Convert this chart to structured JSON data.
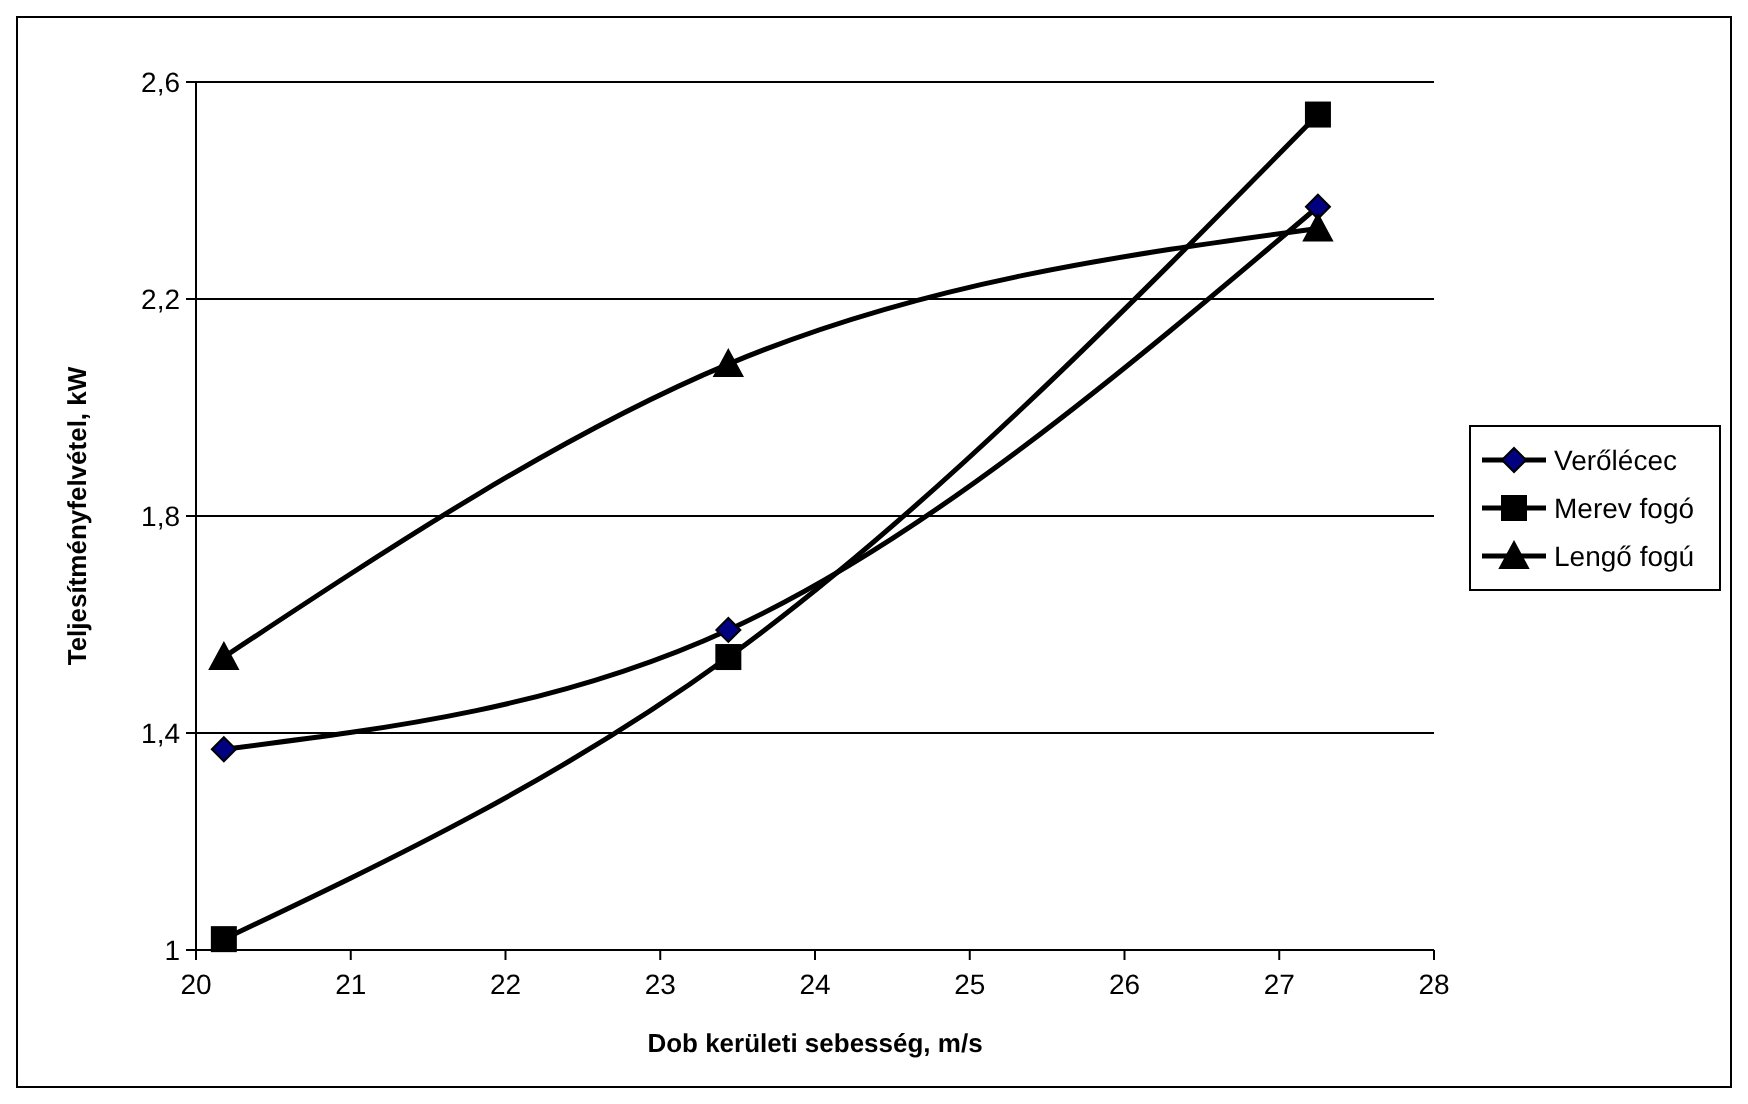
{
  "chart_data": {
    "type": "line",
    "xlabel": "Dob kerületi sebesség, m/s",
    "ylabel": "Teljesítményfelvétel, kW",
    "x": [
      20.18,
      23.44,
      27.25
    ],
    "series": [
      {
        "name": "Verőlécec",
        "color": "#000080",
        "marker": "diamond",
        "values": [
          1.37,
          1.59,
          2.37
        ]
      },
      {
        "name": "Merev fogó",
        "color": "#000000",
        "marker": "square",
        "values": [
          1.02,
          1.54,
          2.54
        ]
      },
      {
        "name": "Lengő fogú",
        "color": "#000000",
        "marker": "triangle",
        "values": [
          1.54,
          2.08,
          2.33
        ]
      }
    ],
    "xlim": [
      20,
      28
    ],
    "xticks": [
      20,
      21,
      22,
      23,
      24,
      25,
      26,
      27,
      28
    ],
    "ylim": [
      1,
      2.6
    ],
    "yticks": [
      {
        "value": 1,
        "label": "1"
      },
      {
        "value": 1.4,
        "label": "1,4"
      },
      {
        "value": 1.8,
        "label": "1,8"
      },
      {
        "value": 2.2,
        "label": "2,2"
      },
      {
        "value": 2.6,
        "label": "2,6"
      }
    ],
    "grid": "y",
    "legend": "right",
    "line_style": "solid"
  }
}
